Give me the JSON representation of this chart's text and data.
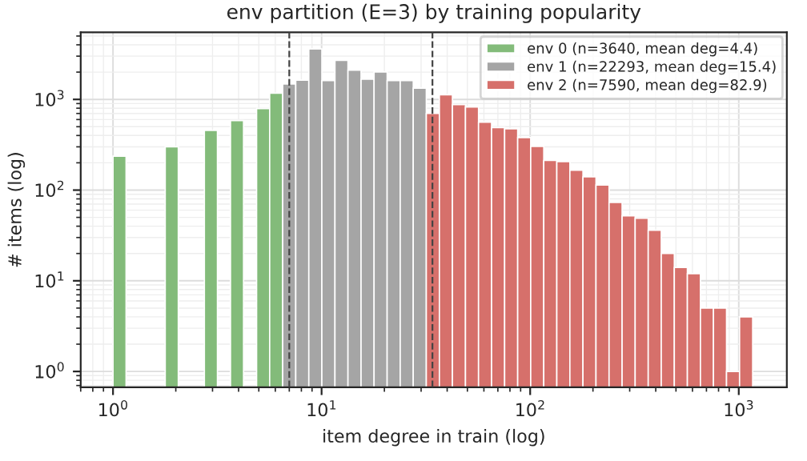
{
  "chart_data": {
    "type": "histogram",
    "title": "env partition (E=3) by training popularity",
    "xlabel": "item degree in train (log)",
    "ylabel": "# items (log)",
    "bins": [
      1,
      1.155,
      1.334,
      1.541,
      1.78,
      2.056,
      2.374,
      2.742,
      3.167,
      3.658,
      4.225,
      4.88,
      5.637,
      6.51,
      7.519,
      8.685,
      10.03,
      11.59,
      13.38,
      15.46,
      17.85,
      20.62,
      23.82,
      27.51,
      31.77,
      36.7,
      42.39,
      48.96,
      56.55,
      65.31,
      75.44,
      87.13,
      100.6,
      116.2,
      134.2,
      155,
      179.1,
      206.8,
      238.9,
      275.9,
      318.7,
      368.1,
      425.1,
      491,
      567.1,
      655,
      756.6,
      873.8,
      1009,
      1166
    ],
    "series": [
      {
        "name": "env 0 (n=3640, mean deg=4.4)",
        "color": "#83bb7a",
        "values": [
          237,
          null,
          null,
          null,
          300,
          null,
          null,
          455,
          null,
          585,
          null,
          792,
          1170,
          null,
          null,
          null,
          null,
          null,
          null,
          null,
          null,
          null,
          null,
          null,
          null,
          null,
          null,
          null,
          null,
          null,
          null,
          null,
          null,
          null,
          null,
          null,
          null,
          null,
          null,
          null,
          null,
          null,
          null,
          null,
          null,
          null,
          null,
          null,
          null
        ]
      },
      {
        "name": "env 1 (n=22293, mean deg=15.4)",
        "color": "#a5a5a5",
        "values": [
          null,
          null,
          null,
          null,
          null,
          null,
          null,
          null,
          null,
          null,
          null,
          null,
          null,
          1480,
          1630,
          3600,
          1610,
          2690,
          2100,
          1670,
          2010,
          1610,
          1610,
          1330,
          null,
          null,
          null,
          null,
          null,
          null,
          null,
          null,
          null,
          null,
          null,
          null,
          null,
          null,
          null,
          null,
          null,
          null,
          null,
          null,
          null,
          null,
          null,
          null,
          null
        ]
      },
      {
        "name": "env 2 (n=7590, mean deg=82.9)",
        "color": "#d6706b",
        "values": [
          null,
          null,
          null,
          null,
          null,
          null,
          null,
          null,
          null,
          null,
          null,
          null,
          null,
          null,
          null,
          null,
          null,
          null,
          null,
          null,
          null,
          null,
          null,
          null,
          700,
          1125,
          875,
          826,
          561,
          489,
          475,
          380,
          304,
          212,
          206,
          166,
          140,
          114,
          73,
          52,
          49,
          36,
          20,
          14,
          12,
          5,
          5,
          1,
          4
        ]
      }
    ],
    "ref_lines": [
      {
        "axis": "x",
        "value": 7,
        "color": "#444444",
        "line_style": "dashed"
      },
      {
        "axis": "x",
        "value": 34,
        "color": "#444444",
        "line_style": "dashed"
      }
    ],
    "log": "xy",
    "xlim": [
      0.7,
      1700
    ],
    "ylim": [
      0.67,
      5500
    ],
    "xticks": [
      {
        "value": 1,
        "label": "10$^{0}$"
      },
      {
        "value": 10,
        "label": "10$^{1}$"
      },
      {
        "value": 100,
        "label": "10$^{2}$"
      },
      {
        "value": 1000,
        "label": "10$^{3}$"
      }
    ],
    "yticks": [
      {
        "value": 1,
        "label": "10$^{0}$"
      },
      {
        "value": 10,
        "label": "10$^{1}$"
      },
      {
        "value": 100,
        "label": "10$^{2}$"
      },
      {
        "value": 1000,
        "label": "10$^{3}$"
      }
    ],
    "grid": true,
    "legend": "top right"
  }
}
